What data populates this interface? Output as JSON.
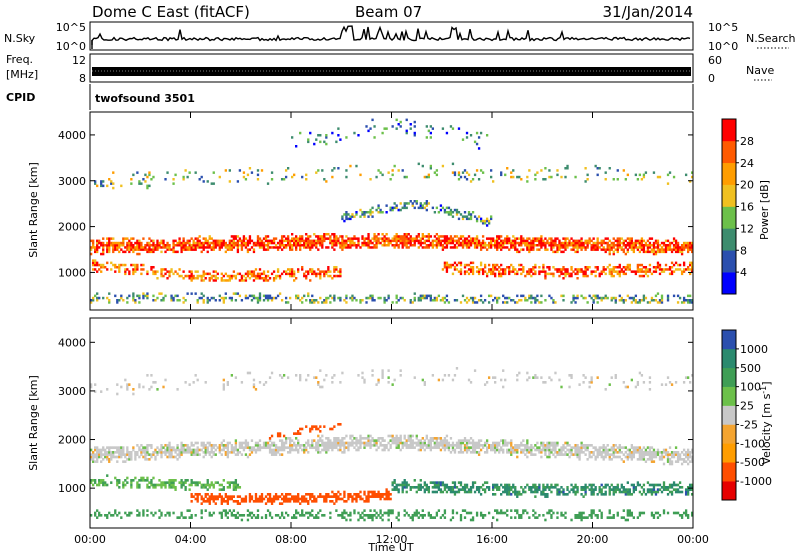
{
  "header": {
    "radar_title": "Dome C East (fitACF)",
    "beam": "Beam 07",
    "date": "31/Jan/2014"
  },
  "status_panels": {
    "nsky_label": "N.Sky",
    "nsky_ticks": [
      "10^5",
      "10^0"
    ],
    "nsearch_label": "N.Search",
    "nsearch_ticks": [
      "10^5",
      "10^0"
    ],
    "freq_label": "Freq.",
    "freq_unit": "[MHz]",
    "freq_ticks": [
      "12",
      "8"
    ],
    "nave_label": "Nave",
    "nave_ticks": [
      "60",
      "0"
    ],
    "cpid_label": "CPID",
    "cpid_value": "twofsound 3501"
  },
  "colors": {
    "power_scale": [
      "#0000ff",
      "#2b4fae",
      "#3d8c6e",
      "#6cc04a",
      "#f0c020",
      "#ff9d00",
      "#ff5a00",
      "#ff0000"
    ],
    "velocity_scale": [
      "#e60000",
      "#ff4e00",
      "#ff9d00",
      "#f4a430",
      "#c8c8c8",
      "#6cc04a",
      "#3f9e55",
      "#2b8a6e",
      "#2b4fae"
    ]
  },
  "chart_data": [
    {
      "type": "heatmap",
      "name": "power",
      "ylabel": "Slant Range [km]",
      "xlabel": "",
      "x_ticks": [
        "00:00",
        "04:00",
        "08:00",
        "12:00",
        "16:00",
        "20:00",
        "00:00"
      ],
      "y_ticks": [
        "1000",
        "2000",
        "3000",
        "4000"
      ],
      "ylim": [
        180,
        4500
      ],
      "xlim_hours": [
        0,
        24
      ],
      "colorbar_label": "Power [dB]",
      "colorbar_ticks": [
        "4",
        "8",
        "12",
        "16",
        "20",
        "24",
        "28"
      ],
      "colorbar_range": [
        0,
        32
      ],
      "bands": [
        {
          "t0": 0,
          "t1": 24,
          "center_start": 1560,
          "center_mid": 1700,
          "center_end": 1550,
          "width": 380,
          "value": 27,
          "density": 0.85
        },
        {
          "t0": 0,
          "t1": 10,
          "center_start": 1150,
          "center_mid": 900,
          "center_end": 1000,
          "width": 300,
          "value": 24,
          "density": 0.55
        },
        {
          "t0": 14,
          "t1": 24,
          "center_start": 1100,
          "center_mid": 1000,
          "center_end": 1100,
          "width": 320,
          "value": 26,
          "density": 0.6
        },
        {
          "t0": 10,
          "t1": 16,
          "center_start": 2200,
          "center_mid": 2500,
          "center_end": 2100,
          "width": 260,
          "value": 10,
          "density": 0.5
        },
        {
          "t0": 0,
          "t1": 24,
          "center_start": 3000,
          "center_mid": 3200,
          "center_end": 3100,
          "width": 420,
          "value": 14,
          "density": 0.12
        },
        {
          "t0": 8,
          "t1": 16,
          "center_start": 3900,
          "center_mid": 4200,
          "center_end": 3900,
          "width": 500,
          "value": 8,
          "density": 0.1
        },
        {
          "t0": 0,
          "t1": 24,
          "center_start": 450,
          "center_mid": 420,
          "center_end": 430,
          "width": 240,
          "value": 12,
          "density": 0.4
        }
      ]
    },
    {
      "type": "heatmap",
      "name": "velocity",
      "ylabel": "Slant Range [km]",
      "xlabel": "Time UT",
      "x_ticks": [
        "00:00",
        "04:00",
        "08:00",
        "12:00",
        "16:00",
        "20:00",
        "00:00"
      ],
      "y_ticks": [
        "1000",
        "2000",
        "3000",
        "4000"
      ],
      "ylim": [
        180,
        4500
      ],
      "xlim_hours": [
        0,
        24
      ],
      "colorbar_label": "Velocity [m s^-1]",
      "colorbar_ticks": [
        "1000",
        "500",
        "100",
        "25",
        "-25",
        "-100",
        "-500",
        "-1000"
      ],
      "bands": [
        {
          "t0": 0,
          "t1": 24,
          "center_start": 1700,
          "center_mid": 1950,
          "center_end": 1650,
          "width": 380,
          "value": 0,
          "density": 0.8
        },
        {
          "t0": 0,
          "t1": 6,
          "center_start": 1150,
          "center_mid": 1100,
          "center_end": 1050,
          "width": 260,
          "value": 90,
          "density": 0.55
        },
        {
          "t0": 4,
          "t1": 12,
          "center_start": 800,
          "center_mid": 780,
          "center_end": 850,
          "width": 260,
          "value": -300,
          "density": 0.75
        },
        {
          "t0": 12,
          "t1": 24,
          "center_start": 1050,
          "center_mid": 950,
          "center_end": 1000,
          "width": 300,
          "value": 350,
          "density": 0.65
        },
        {
          "t0": 0,
          "t1": 24,
          "center_start": 480,
          "center_mid": 450,
          "center_end": 460,
          "width": 240,
          "value": 200,
          "density": 0.4
        },
        {
          "t0": 0,
          "t1": 24,
          "center_start": 3100,
          "center_mid": 3300,
          "center_end": 3150,
          "width": 420,
          "value": 0,
          "density": 0.12
        },
        {
          "t0": 7,
          "t1": 10,
          "center_start": 2000,
          "center_mid": 2200,
          "center_end": 2300,
          "width": 160,
          "value": -250,
          "density": 0.35
        }
      ]
    }
  ]
}
